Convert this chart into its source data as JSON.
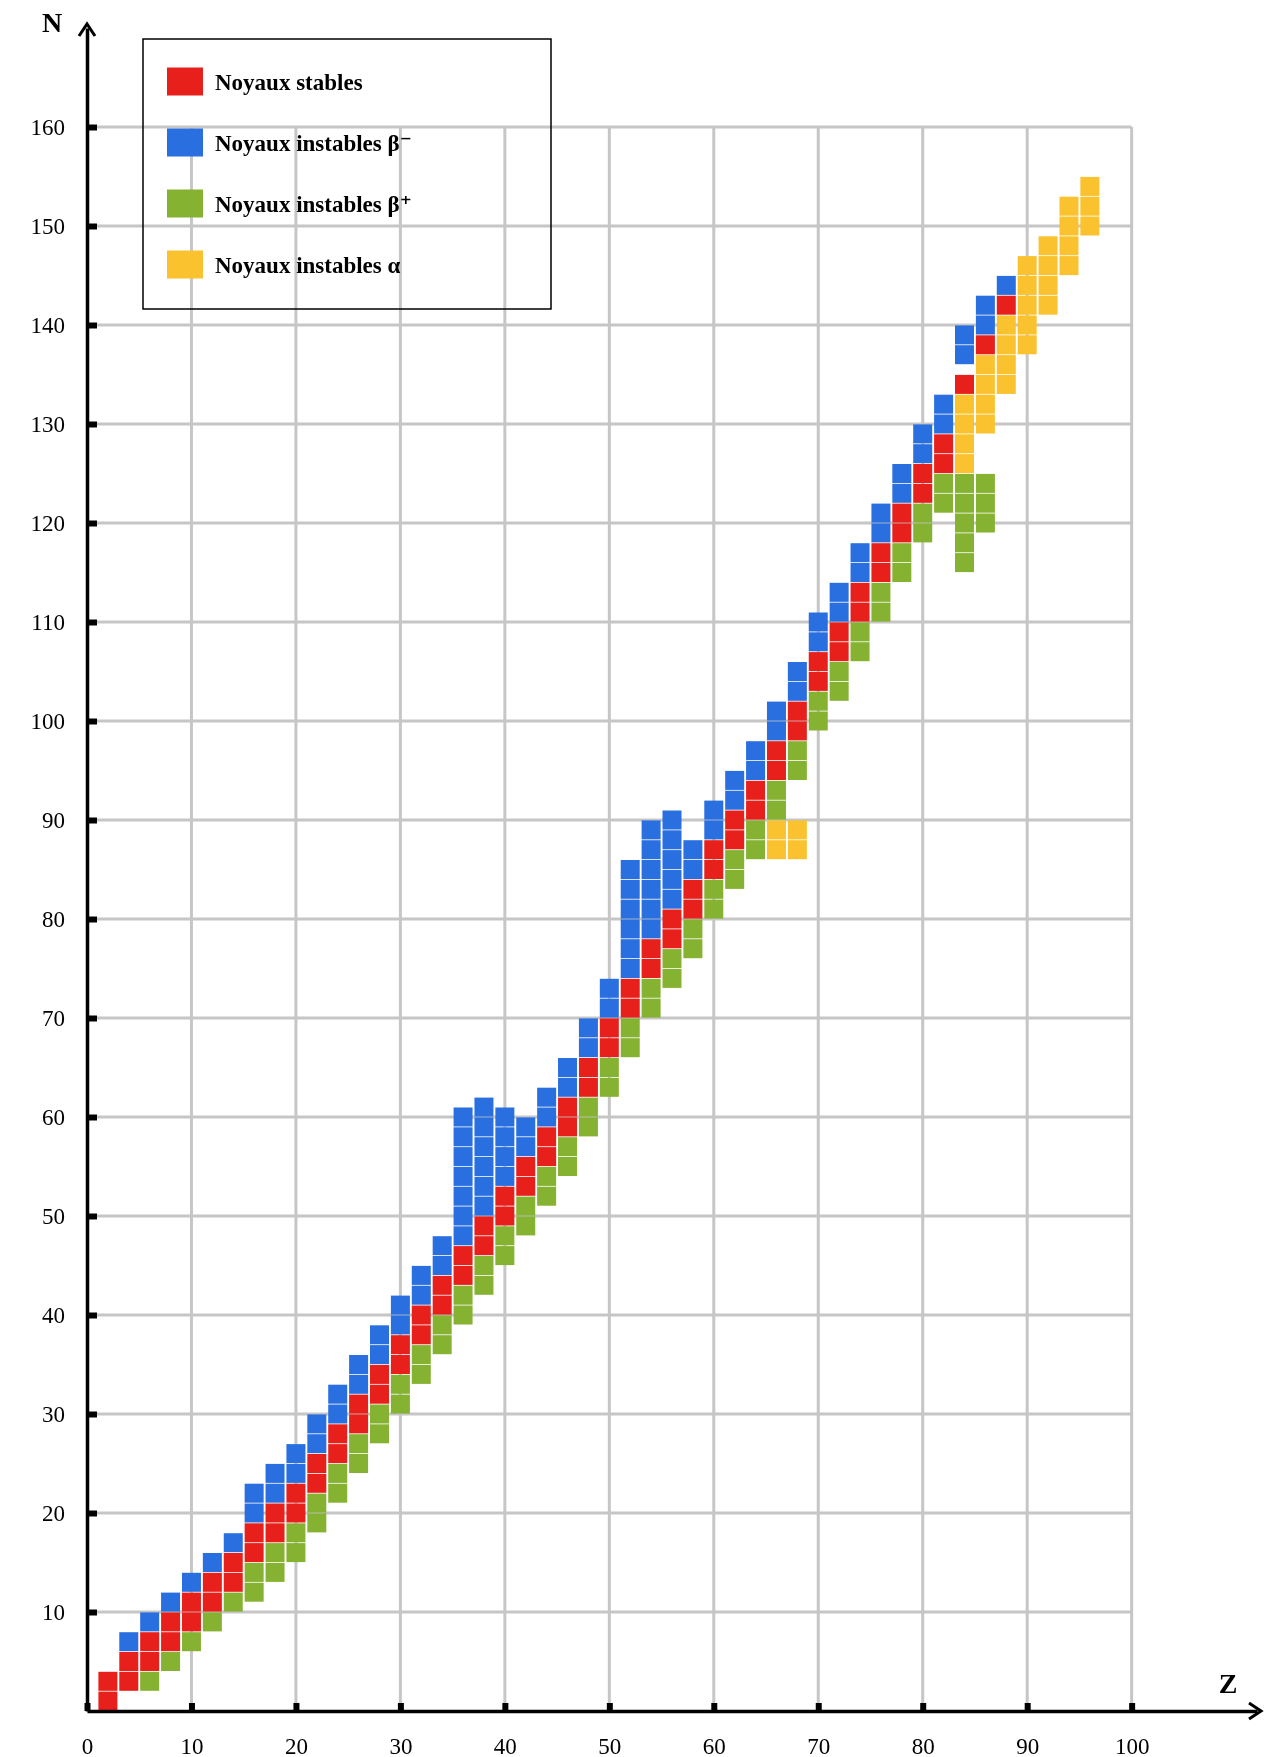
{
  "chart_data": {
    "type": "scatter",
    "xlabel": "Z",
    "ylabel": "N",
    "xlim": [
      0,
      112
    ],
    "ylim": [
      0,
      170
    ],
    "xticks": [
      0,
      10,
      20,
      30,
      40,
      50,
      60,
      70,
      80,
      90,
      100
    ],
    "yticks": [
      10,
      20,
      30,
      40,
      50,
      60,
      70,
      80,
      90,
      100,
      110,
      120,
      130,
      140,
      150,
      160
    ],
    "grid": true,
    "legend": "top left",
    "marker": "square",
    "series": [
      {
        "name": "Noyaux stables",
        "color": "#e8201c",
        "x": [
          2,
          2,
          4,
          4,
          6,
          6,
          8,
          8,
          10,
          10,
          12,
          12,
          14,
          14,
          16,
          16,
          18,
          18,
          20,
          20,
          22,
          22,
          24,
          24,
          26,
          26,
          28,
          28,
          30,
          30,
          32,
          32,
          34,
          34,
          36,
          36,
          38,
          38,
          40,
          40,
          42,
          42,
          44,
          44,
          46,
          46,
          48,
          48,
          50,
          50,
          52,
          52,
          54,
          54,
          56,
          56,
          58,
          58,
          60,
          60,
          62,
          62,
          64,
          64,
          66,
          66,
          68,
          68,
          70,
          70,
          72,
          72,
          74,
          74,
          76,
          76,
          78,
          78,
          80,
          80,
          82,
          82,
          84,
          86,
          88
        ],
        "values": [
          1,
          3,
          3,
          5,
          5,
          7,
          7,
          9,
          9,
          11,
          11,
          13,
          13,
          15,
          16,
          18,
          18,
          20,
          20,
          22,
          23,
          25,
          26,
          28,
          29,
          31,
          32,
          34,
          35,
          37,
          38,
          40,
          41,
          43,
          44,
          46,
          47,
          49,
          50,
          52,
          53,
          55,
          56,
          58,
          59,
          61,
          63,
          65,
          67,
          69,
          71,
          73,
          75,
          77,
          78,
          80,
          81,
          83,
          85,
          87,
          88,
          90,
          91,
          93,
          95,
          97,
          99,
          101,
          104,
          106,
          107,
          109,
          111,
          113,
          115,
          117,
          119,
          121,
          123,
          125,
          126,
          128,
          134,
          138,
          142
        ]
      },
      {
        "name": "Noyaux instables β⁻",
        "color": "#2a6fe0",
        "x": [
          4,
          6,
          8,
          10,
          12,
          14,
          16,
          16,
          18,
          18,
          20,
          20,
          22,
          22,
          24,
          24,
          26,
          26,
          28,
          28,
          30,
          30,
          32,
          32,
          34,
          34,
          36,
          36,
          38,
          38,
          40,
          40,
          42,
          42,
          44,
          44,
          46,
          46,
          48,
          48,
          50,
          50,
          52,
          52,
          54,
          54,
          56,
          56,
          58,
          58,
          60,
          60,
          62,
          62,
          64,
          64,
          66,
          66,
          68,
          68,
          70,
          70,
          72,
          72,
          74,
          74,
          76,
          76,
          78,
          78,
          80,
          80,
          82,
          82,
          36,
          36,
          36,
          36,
          36,
          38,
          38,
          38,
          38,
          40,
          40,
          52,
          52,
          52,
          52,
          54,
          54,
          54,
          54,
          56,
          56,
          56,
          84,
          84,
          86,
          86,
          88
        ],
        "values": [
          7,
          9,
          11,
          13,
          15,
          17,
          20,
          22,
          22,
          24,
          24,
          26,
          27,
          29,
          30,
          32,
          33,
          35,
          36,
          38,
          39,
          41,
          42,
          44,
          45,
          47,
          48,
          50,
          51,
          53,
          54,
          56,
          57,
          59,
          60,
          62,
          63,
          65,
          67,
          69,
          71,
          73,
          75,
          77,
          79,
          81,
          82,
          84,
          85,
          87,
          89,
          91,
          92,
          94,
          95,
          97,
          99,
          101,
          103,
          105,
          108,
          110,
          111,
          113,
          115,
          117,
          119,
          121,
          123,
          125,
          127,
          129,
          130,
          132,
          52,
          54,
          56,
          58,
          60,
          55,
          57,
          59,
          61,
          58,
          60,
          79,
          81,
          83,
          85,
          83,
          85,
          87,
          89,
          86,
          88,
          90,
          137,
          139,
          140,
          142,
          144
        ]
      },
      {
        "name": "Noyaux instables β⁺",
        "color": "#86b232",
        "x": [
          6,
          8,
          10,
          12,
          14,
          16,
          16,
          18,
          18,
          20,
          20,
          22,
          22,
          24,
          24,
          26,
          26,
          28,
          28,
          30,
          30,
          32,
          32,
          34,
          34,
          36,
          36,
          38,
          38,
          40,
          40,
          42,
          42,
          44,
          44,
          46,
          46,
          48,
          48,
          50,
          50,
          52,
          52,
          54,
          54,
          56,
          56,
          58,
          58,
          60,
          60,
          62,
          62,
          64,
          64,
          66,
          66,
          68,
          68,
          70,
          70,
          72,
          72,
          74,
          74,
          76,
          76,
          78,
          78,
          80,
          80,
          82,
          82,
          84,
          84,
          84,
          84,
          84,
          86,
          86,
          86
        ],
        "values": [
          3,
          5,
          7,
          9,
          11,
          14,
          12,
          16,
          14,
          18,
          16,
          21,
          19,
          24,
          22,
          27,
          25,
          30,
          28,
          33,
          31,
          36,
          34,
          39,
          37,
          42,
          40,
          45,
          43,
          48,
          46,
          51,
          49,
          54,
          52,
          57,
          55,
          61,
          59,
          65,
          63,
          69,
          67,
          73,
          71,
          76,
          74,
          79,
          77,
          83,
          81,
          86,
          84,
          89,
          87,
          93,
          91,
          97,
          95,
          102,
          100,
          105,
          103,
          109,
          107,
          113,
          111,
          117,
          115,
          121,
          119,
          124,
          122,
          116,
          118,
          120,
          122,
          124,
          120,
          122,
          124
        ]
      },
      {
        "name": "Noyaux instables α",
        "color": "#f9c22e",
        "x": [
          84,
          84,
          84,
          84,
          86,
          86,
          86,
          86,
          88,
          88,
          88,
          88,
          90,
          90,
          90,
          90,
          90,
          92,
          92,
          92,
          92,
          94,
          94,
          94,
          94,
          96,
          96,
          96,
          66,
          66,
          68,
          68
        ],
        "values": [
          126,
          128,
          130,
          132,
          130,
          132,
          134,
          136,
          134,
          136,
          138,
          140,
          138,
          140,
          142,
          144,
          146,
          142,
          144,
          146,
          148,
          146,
          148,
          150,
          152,
          150,
          152,
          154,
          87,
          89,
          87,
          89
        ]
      }
    ]
  }
}
